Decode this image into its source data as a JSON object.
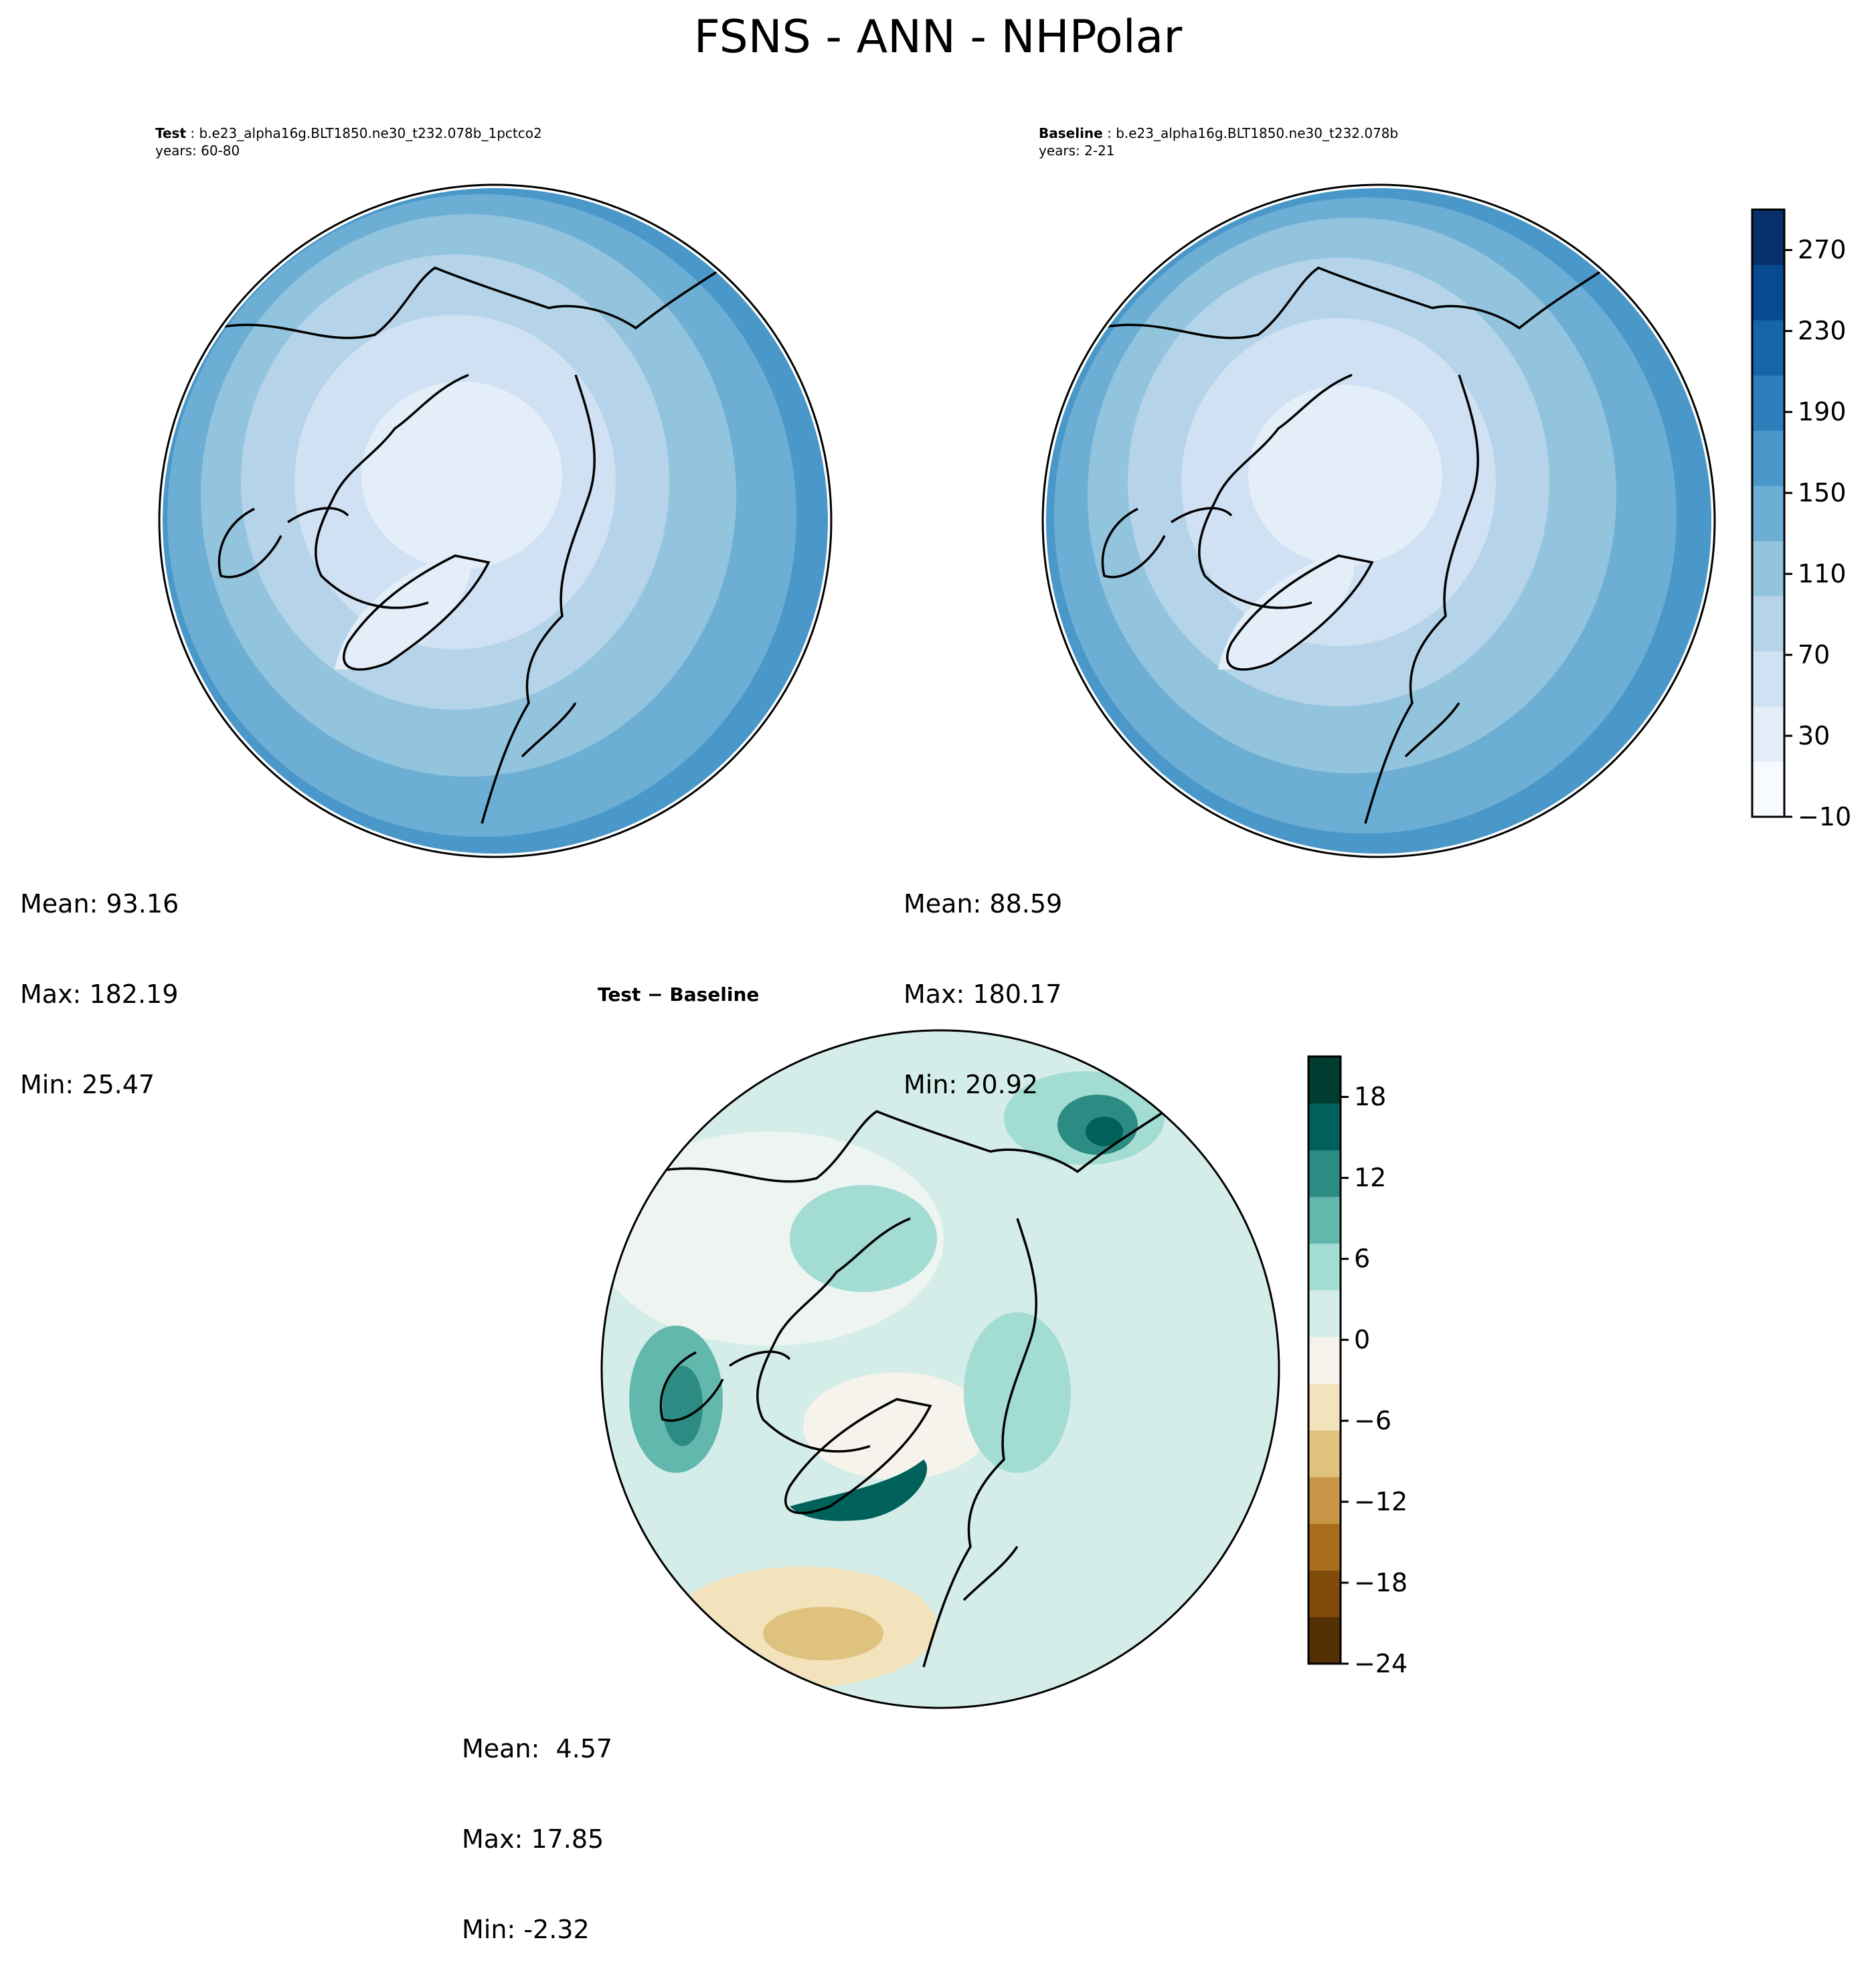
{
  "title": "FSNS - ANN - NHPolar",
  "panels": {
    "test": {
      "label": "Test",
      "case": "b.e23_alpha16g.BLT1850.ne30_t232.078b_1pctco2",
      "years": "years: 60-80",
      "stats": [
        "Mean: 93.16",
        "Max: 182.19",
        "Min: 25.47"
      ]
    },
    "baseline": {
      "label": "Baseline",
      "case": "b.e23_alpha16g.BLT1850.ne30_t232.078b",
      "years": "years: 2-21",
      "stats": [
        "Mean: 88.59",
        "Max: 180.17",
        "Min: 20.92"
      ]
    },
    "diff": {
      "label": "Test − Baseline",
      "stats": [
        "Mean:  4.57",
        "Max: 17.85",
        "Min: -2.32"
      ]
    }
  },
  "colorbars": {
    "main": {
      "ticks": [
        "−10",
        "30",
        "70",
        "110",
        "150",
        "190",
        "230",
        "270"
      ],
      "range": [
        -10,
        290
      ],
      "colors": [
        "#f7fbff",
        "#e3eef9",
        "#cfe1f2",
        "#b5d4e9",
        "#93c4de",
        "#6daed5",
        "#4a97c9",
        "#2e7ebc",
        "#1764ab",
        "#084a91",
        "#08306b"
      ]
    },
    "diff": {
      "ticks": [
        "−24",
        "−18",
        "−12",
        "−6",
        "0",
        "6",
        "12",
        "18"
      ],
      "range": [
        -24,
        21
      ],
      "colors": [
        "#543005",
        "#7f4b0b",
        "#a86e1c",
        "#c89647",
        "#e0c27f",
        "#f2e3bd",
        "#f5f3ec",
        "#d5ede9",
        "#a2dcd3",
        "#63b8ad",
        "#2c8b83",
        "#00615a",
        "#003c30"
      ]
    }
  }
}
